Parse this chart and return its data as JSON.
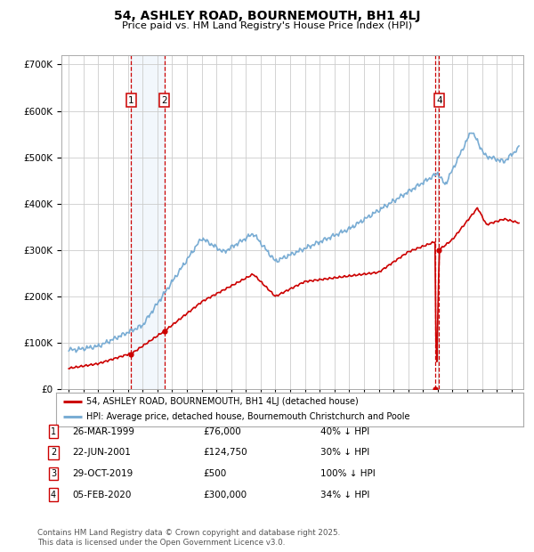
{
  "title": "54, ASHLEY ROAD, BOURNEMOUTH, BH1 4LJ",
  "subtitle": "Price paid vs. HM Land Registry's House Price Index (HPI)",
  "background_color": "#ffffff",
  "plot_bg_color": "#ffffff",
  "grid_color": "#cccccc",
  "hpi_color": "#7aadd4",
  "price_color": "#cc0000",
  "transactions": [
    {
      "num": 1,
      "date_x": 1999.23,
      "price": 76000
    },
    {
      "num": 2,
      "date_x": 2001.47,
      "price": 124750
    },
    {
      "num": 3,
      "date_x": 2019.83,
      "price": 500
    },
    {
      "num": 4,
      "date_x": 2020.09,
      "price": 300000
    }
  ],
  "legend_items": [
    {
      "label": "54, ASHLEY ROAD, BOURNEMOUTH, BH1 4LJ (detached house)",
      "color": "#cc0000"
    },
    {
      "label": "HPI: Average price, detached house, Bournemouth Christchurch and Poole",
      "color": "#7aadd4"
    }
  ],
  "table_rows": [
    {
      "num": 1,
      "date": "26-MAR-1999",
      "price": "£76,000",
      "pct": "40% ↓ HPI"
    },
    {
      "num": 2,
      "date": "22-JUN-2001",
      "price": "£124,750",
      "pct": "30% ↓ HPI"
    },
    {
      "num": 3,
      "date": "29-OCT-2019",
      "price": "£500",
      "pct": "100% ↓ HPI"
    },
    {
      "num": 4,
      "date": "05-FEB-2020",
      "price": "£300,000",
      "pct": "34% ↓ HPI"
    }
  ],
  "footnote": "Contains HM Land Registry data © Crown copyright and database right 2025.\nThis data is licensed under the Open Government Licence v3.0.",
  "ylim": [
    0,
    720000
  ],
  "xlim_start": 1994.5,
  "xlim_end": 2025.8,
  "shade_x1": 1999.23,
  "shade_x2": 2001.47
}
